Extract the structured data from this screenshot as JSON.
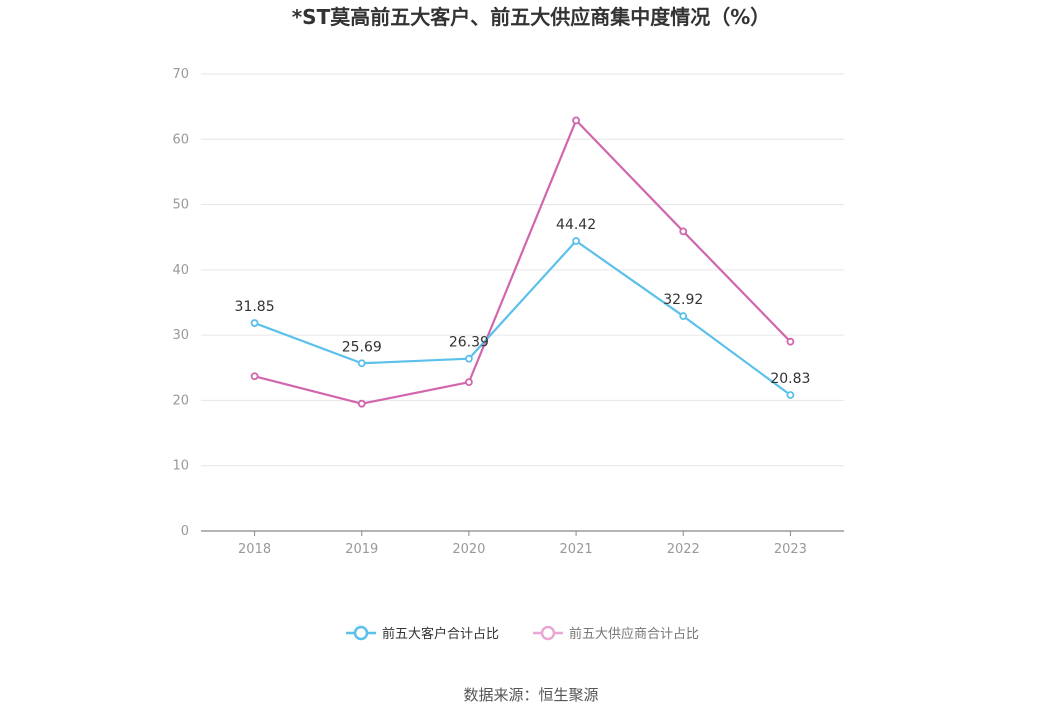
{
  "chart_data": {
    "type": "line",
    "title": "*ST莫高前五大客户、前五大供应商集中度情况（%）",
    "categories": [
      "2018",
      "2019",
      "2020",
      "2021",
      "2022",
      "2023"
    ],
    "ylim": [
      0,
      70
    ],
    "yticks": [
      0,
      10,
      20,
      30,
      40,
      50,
      60,
      70
    ],
    "grid": true,
    "legend_position": "bottom",
    "series": [
      {
        "name": "前五大客户合计占比",
        "color": "#5bc0eb",
        "values": [
          31.85,
          25.69,
          26.39,
          44.42,
          32.92,
          20.83
        ],
        "labels": [
          "31.85",
          "25.69",
          "26.39",
          "44.42",
          "32.92",
          "20.83"
        ]
      },
      {
        "name": "前五大供应商合计占比",
        "color": "#d066ac",
        "values": [
          23.7,
          19.5,
          22.8,
          62.9,
          45.9,
          29.0
        ]
      }
    ],
    "source": "数据来源：恒生聚源"
  }
}
